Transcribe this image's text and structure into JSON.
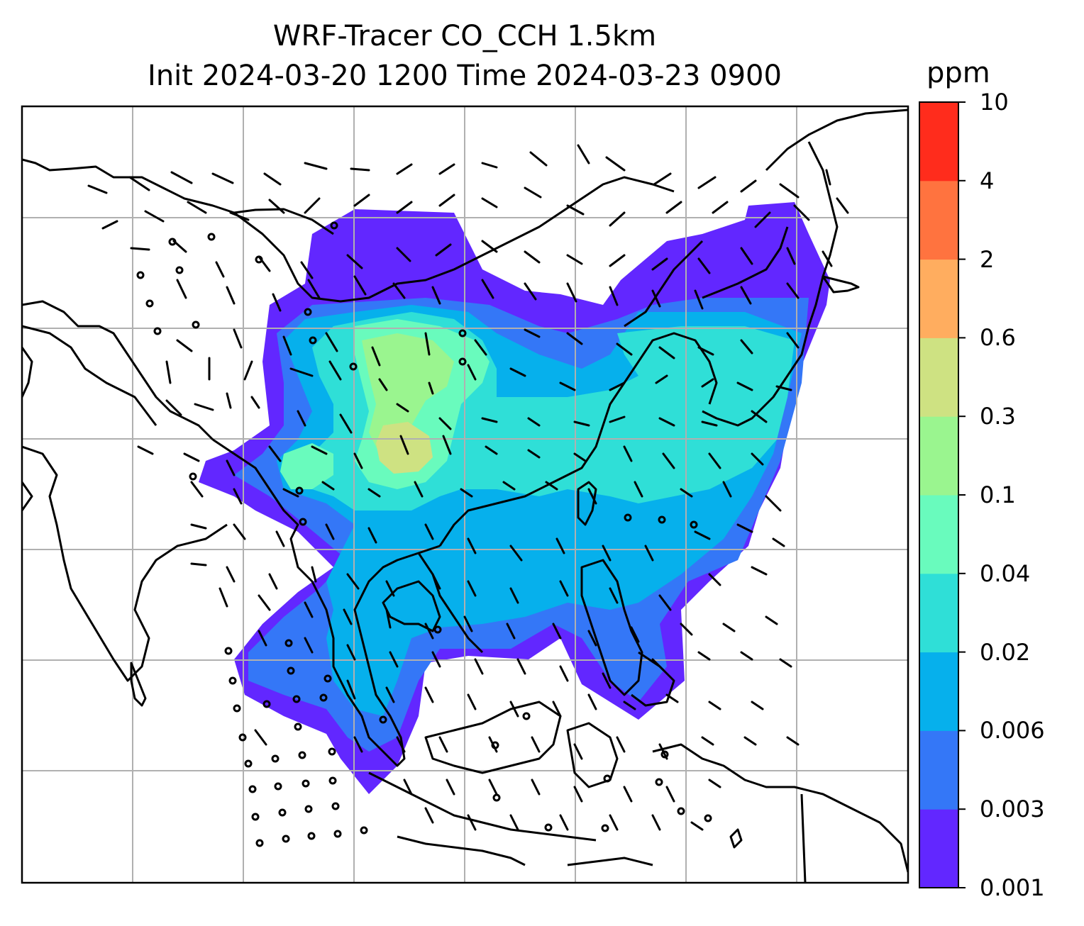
{
  "title": {
    "line1": "WRF-Tracer CO_CCH 1.5km",
    "line2": "Init 2024-03-20 1200 Time 2024-03-23 0900"
  },
  "colorbar": {
    "unit": "ppm",
    "ticks": [
      "0.001",
      "0.003",
      "0.006",
      "0.02",
      "0.04",
      "0.1",
      "0.3",
      "0.6",
      "2",
      "4",
      "10"
    ],
    "colors": [
      "#6227ff",
      "#3477f7",
      "#06b0ec",
      "#2fdfd7",
      "#69fbbd",
      "#9af58f",
      "#cee282",
      "#ffad5f",
      "#ff733f",
      "#ff2c1c"
    ]
  },
  "map": {
    "background": "#ffffff",
    "gridlines": true,
    "grid_color": "#b0b0b0",
    "coastline_color": "#000000",
    "calm_wind_marker": "circle"
  }
}
